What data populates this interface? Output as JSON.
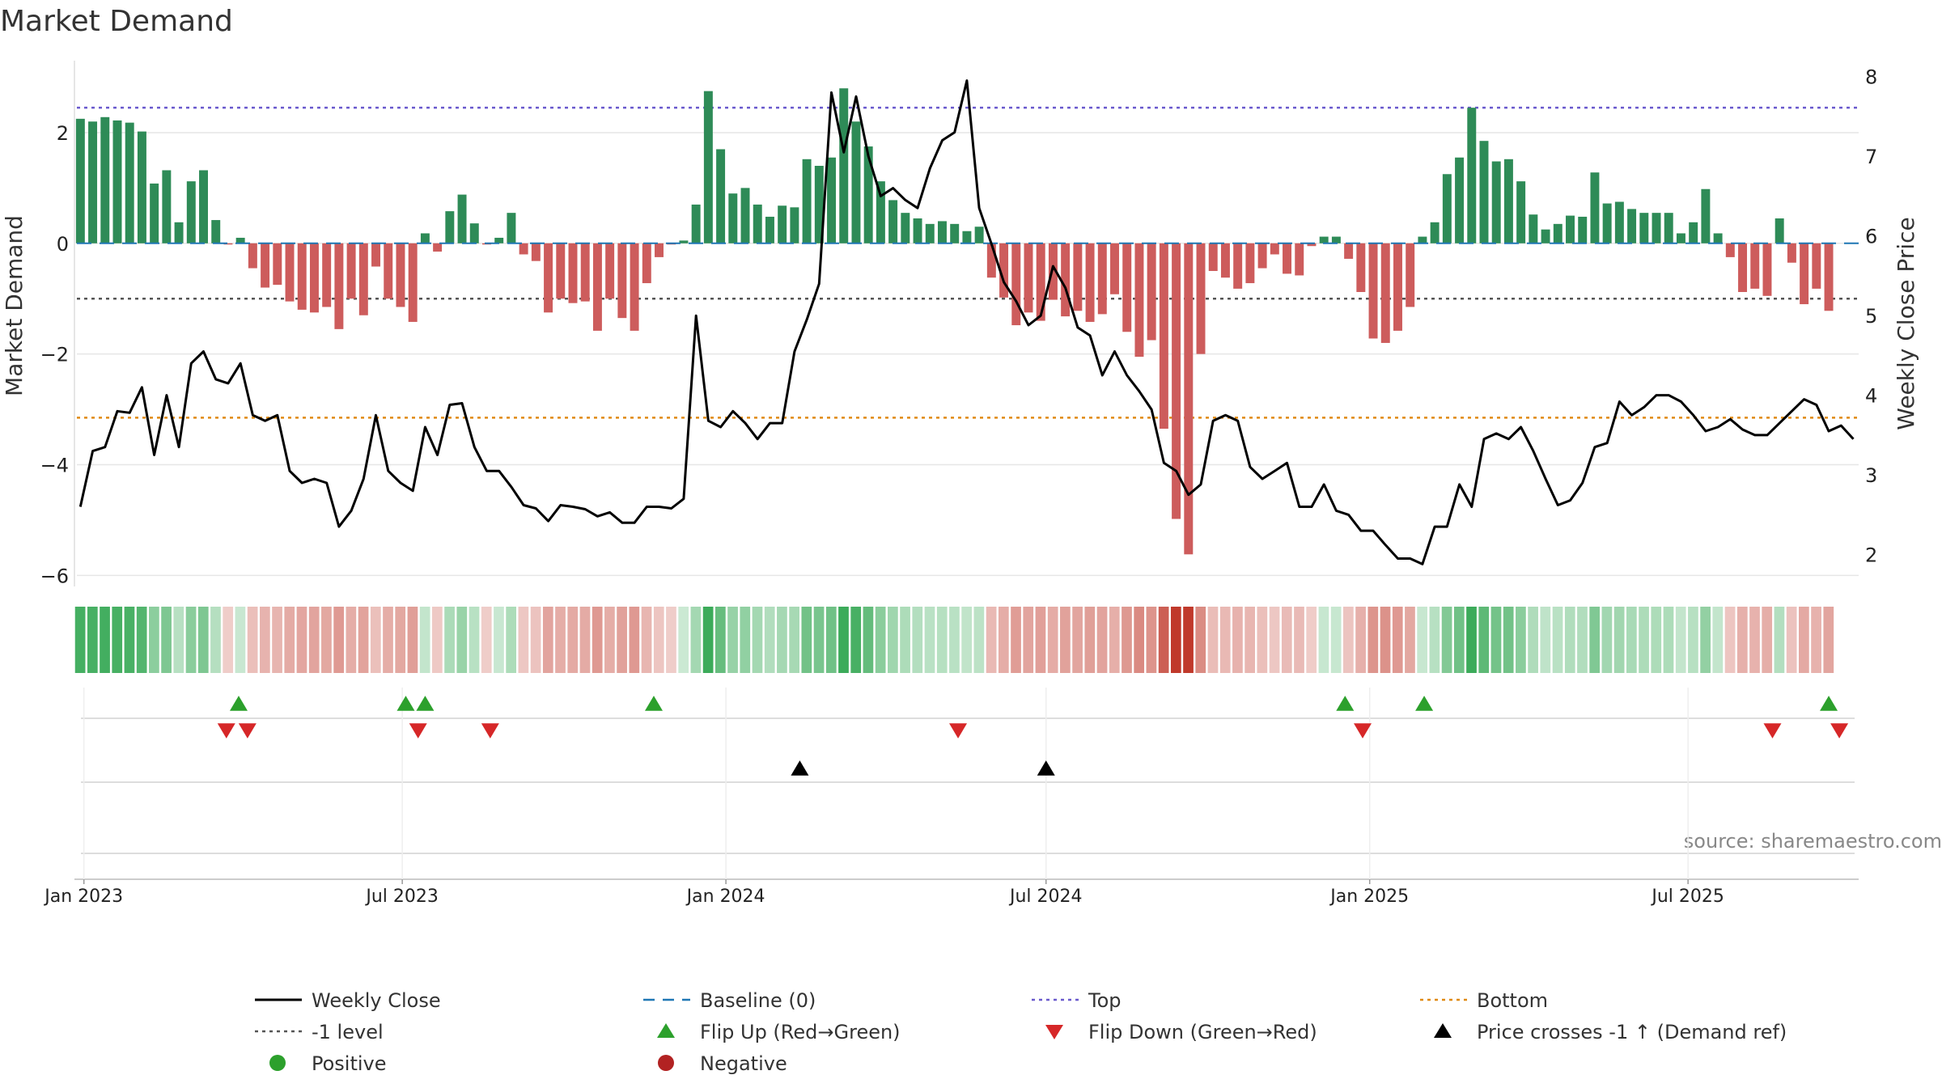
{
  "chart_data": {
    "type": "bar",
    "title": "Market Demand",
    "ylabel_left": "Market Demand",
    "ylabel_right": "Weekly Close Price",
    "source": "source: sharemaestro.com",
    "x_ticks": [
      "Jan 2023",
      "Jul 2023",
      "Jan 2024",
      "Jul 2024",
      "Jan 2025",
      "Jul 2025"
    ],
    "x_tick_dates": [
      "2023-01-01",
      "2023-07-01",
      "2024-01-01",
      "2024-07-01",
      "2025-01-01",
      "2025-07-01"
    ],
    "x_range": [
      "2022-12-28",
      "2025-10-06"
    ],
    "y_left_ticks": [
      2,
      0,
      -2,
      -4,
      -6
    ],
    "y_left_range": [
      -6.2,
      3.3
    ],
    "y_right_ticks": [
      8,
      7,
      6,
      5,
      4,
      3,
      2
    ],
    "y_right_range": [
      1.6,
      8.2
    ],
    "grid": true,
    "reference_lines": {
      "baseline": 0,
      "top": 2.45,
      "bottom": -3.15,
      "minus_one": -1
    },
    "series": [
      {
        "name": "Market Demand",
        "start_date": "2022-12-30",
        "week_step_days": 7,
        "values": [
          2.25,
          2.2,
          2.28,
          2.22,
          2.18,
          2.02,
          1.08,
          1.32,
          0.38,
          1.12,
          1.32,
          0.42,
          -0.02,
          0.1,
          -0.45,
          -0.8,
          -0.75,
          -1.05,
          -1.2,
          -1.25,
          -1.15,
          -1.55,
          -1.0,
          -1.3,
          -0.42,
          -1.0,
          -1.15,
          -1.42,
          0.18,
          -0.15,
          0.58,
          0.88,
          0.36,
          -0.02,
          0.1,
          0.55,
          -0.2,
          -0.32,
          -1.25,
          -1.0,
          -1.08,
          -1.05,
          -1.58,
          -1.0,
          -1.35,
          -1.58,
          -0.72,
          -0.25,
          -0.02,
          0.05,
          0.7,
          2.75,
          1.7,
          0.9,
          1.0,
          0.7,
          0.48,
          0.68,
          0.65,
          1.52,
          1.4,
          1.55,
          2.8,
          2.2,
          1.75,
          1.12,
          0.78,
          0.55,
          0.45,
          0.35,
          0.4,
          0.35,
          0.22,
          0.3,
          -0.62,
          -0.98,
          -1.48,
          -1.25,
          -1.4,
          -1.02,
          -1.32,
          -1.22,
          -1.42,
          -1.28,
          -0.92,
          -1.6,
          -2.05,
          -1.75,
          -3.35,
          -4.98,
          -5.62,
          -2.0,
          -0.5,
          -0.62,
          -0.82,
          -0.72,
          -0.45,
          -0.2,
          -0.55,
          -0.58,
          -0.05,
          0.12,
          0.12,
          -0.28,
          -0.88,
          -1.72,
          -1.8,
          -1.58,
          -1.15,
          0.12,
          0.38,
          1.25,
          1.55,
          2.45,
          1.85,
          1.48,
          1.52,
          1.12,
          0.52,
          0.25,
          0.35,
          0.5,
          0.48,
          1.28,
          0.72,
          0.75,
          0.62,
          0.55,
          0.55,
          0.55,
          0.18,
          0.38,
          0.98,
          0.18,
          -0.25,
          -0.88,
          -0.82,
          -0.95,
          0.45,
          -0.35,
          -1.1,
          -0.82,
          -1.22
        ]
      },
      {
        "name": "Weekly Close",
        "start_date": "2022-12-30",
        "week_step_days": 7,
        "values": [
          2.6,
          3.3,
          3.35,
          3.8,
          3.78,
          4.1,
          3.25,
          4.0,
          3.35,
          4.4,
          4.55,
          4.2,
          4.15,
          4.4,
          3.75,
          3.68,
          3.75,
          3.05,
          2.9,
          2.95,
          2.9,
          2.35,
          2.55,
          2.95,
          3.75,
          3.05,
          2.9,
          2.8,
          3.6,
          3.25,
          3.88,
          3.9,
          3.35,
          3.05,
          3.05,
          2.85,
          2.62,
          2.58,
          2.42,
          2.62,
          2.6,
          2.57,
          2.48,
          2.53,
          2.4,
          2.4,
          2.6,
          2.6,
          2.58,
          2.7,
          5.0,
          3.68,
          3.6,
          3.8,
          3.65,
          3.45,
          3.65,
          3.65,
          4.55,
          4.95,
          5.4,
          7.8,
          7.05,
          7.75,
          7.0,
          6.5,
          6.6,
          6.45,
          6.35,
          6.85,
          7.2,
          7.3,
          7.95,
          6.35,
          5.9,
          5.42,
          5.18,
          4.88,
          5.0,
          5.62,
          5.35,
          4.85,
          4.75,
          4.25,
          4.55,
          4.25,
          4.05,
          3.82,
          3.15,
          3.05,
          2.75,
          2.88,
          3.68,
          3.75,
          3.68,
          3.1,
          2.95,
          3.05,
          3.15,
          2.6,
          2.6,
          2.88,
          2.55,
          2.5,
          2.3,
          2.3,
          2.12,
          1.95,
          1.95,
          1.88,
          2.35,
          2.35,
          2.88,
          2.6,
          3.45,
          3.52,
          3.45,
          3.6,
          3.3,
          2.95,
          2.62,
          2.68,
          2.9,
          3.35,
          3.4,
          3.92,
          3.75,
          3.85,
          4.0,
          4.0,
          3.92,
          3.75,
          3.55,
          3.6,
          3.7,
          3.57,
          3.5,
          3.5,
          3.65,
          3.8,
          3.95,
          3.88,
          3.55,
          3.62,
          3.45
        ]
      }
    ],
    "heat_strip": {
      "description_values_ref": "Market Demand"
    },
    "events": {
      "flip_up_dates": [
        "2023-03-30",
        "2023-07-03",
        "2023-07-14",
        "2023-11-21",
        "2024-12-18",
        "2025-02-01",
        "2025-09-19"
      ],
      "flip_down_dates": [
        "2023-03-23",
        "2023-04-04",
        "2023-07-10",
        "2023-08-20",
        "2024-05-12",
        "2024-12-28",
        "2025-08-18",
        "2025-09-25"
      ],
      "price_cross_dates": [
        "2024-02-12",
        "2024-07-01"
      ]
    },
    "legend": {
      "placement": "bottom",
      "items": [
        {
          "label": "Weekly Close",
          "marker": "line",
          "color": "#000000"
        },
        {
          "label": "Baseline (0)",
          "marker": "dash",
          "color": "#1f77b4"
        },
        {
          "label": "Top",
          "marker": "dot-line",
          "color": "#6a5acd"
        },
        {
          "label": "Bottom",
          "marker": "dot-line",
          "color": "#e08a12"
        },
        {
          "label": "-1 level",
          "marker": "dot-line",
          "color": "#555555"
        },
        {
          "label": "Flip Up (Red→Green)",
          "marker": "triangle-up",
          "color": "#2ca02c"
        },
        {
          "label": "Flip Down (Green→Red)",
          "marker": "triangle-down",
          "color": "#d62728"
        },
        {
          "label": "Price crosses -1 ↑ (Demand ref)",
          "marker": "triangle-up",
          "color": "#000000"
        },
        {
          "label": "Positive",
          "marker": "circle",
          "color": "#2ca02c"
        },
        {
          "label": "Negative",
          "marker": "circle",
          "color": "#b22222"
        }
      ]
    },
    "colors": {
      "positive_bar": "#2e8b57",
      "negative_bar": "#cd5c5c",
      "price_line": "#000000",
      "flip_up": "#2ca02c",
      "flip_down": "#d62728"
    }
  }
}
